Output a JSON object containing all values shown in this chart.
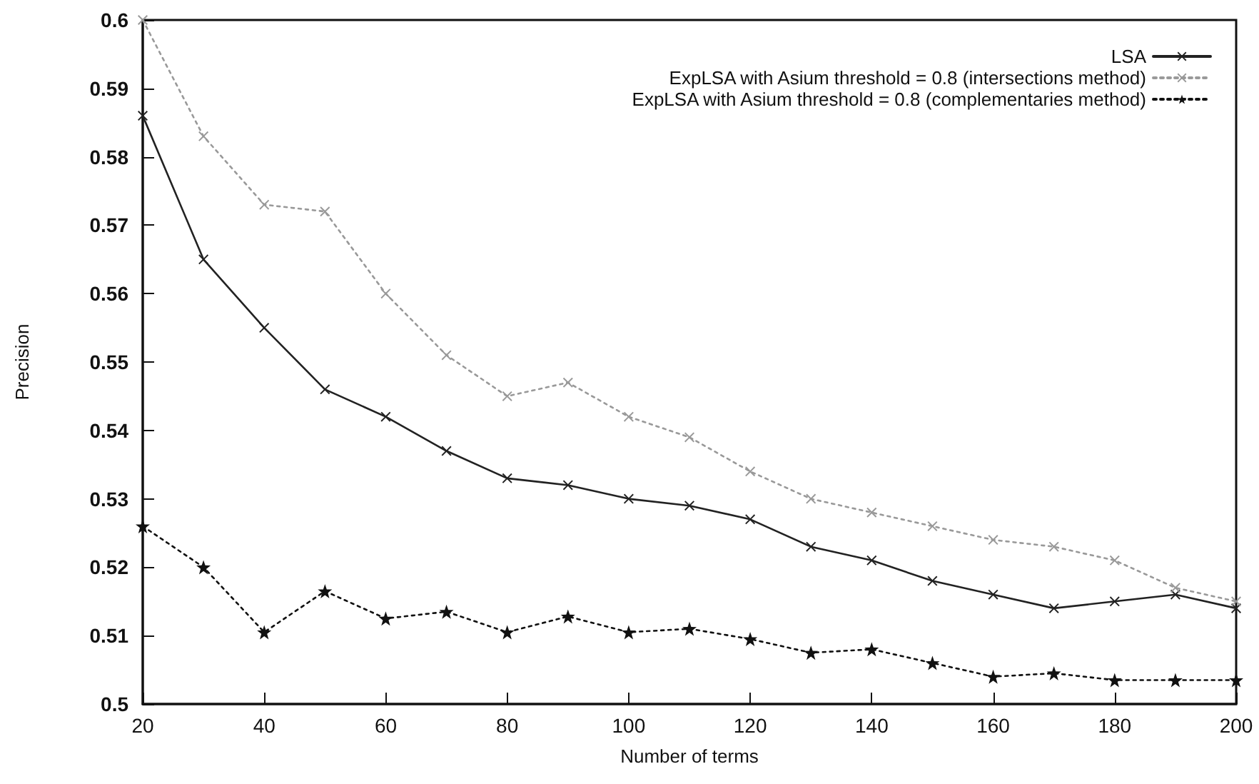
{
  "chart_data": {
    "type": "line",
    "xlabel": "Number of terms",
    "ylabel": "Precision",
    "x": [
      20,
      30,
      40,
      50,
      60,
      70,
      80,
      90,
      100,
      110,
      120,
      130,
      140,
      150,
      160,
      170,
      180,
      190,
      200
    ],
    "series": [
      {
        "name": "LSA",
        "color": "#222222",
        "line_style": "solid",
        "marker": "cross",
        "values": [
          0.586,
          0.565,
          0.555,
          0.546,
          0.542,
          0.537,
          0.533,
          0.532,
          0.53,
          0.529,
          0.527,
          0.523,
          0.521,
          0.518,
          0.516,
          0.514,
          0.515,
          0.516,
          0.514
        ]
      },
      {
        "name": "ExpLSA with Asium threshold = 0.8 (intersections method)",
        "color": "#999999",
        "line_style": "dotted",
        "marker": "cross",
        "values": [
          0.6,
          0.583,
          0.573,
          0.572,
          0.56,
          0.551,
          0.545,
          0.547,
          0.542,
          0.539,
          0.534,
          0.53,
          0.528,
          0.526,
          0.524,
          0.523,
          0.521,
          0.517,
          0.515
        ]
      },
      {
        "name": "ExpLSA with Asium threshold = 0.8 (complementaries method)",
        "color": "#111111",
        "line_style": "dotted",
        "marker": "star",
        "values": [
          0.526,
          0.52,
          0.5105,
          0.5165,
          0.5125,
          0.5135,
          0.5105,
          0.5128,
          0.5105,
          0.511,
          0.5095,
          0.5075,
          0.508,
          0.506,
          0.504,
          0.5045,
          0.5035,
          0.5035,
          0.5035
        ]
      }
    ],
    "xlim": [
      20,
      200
    ],
    "xticks": [
      20,
      40,
      60,
      80,
      100,
      120,
      140,
      160,
      180,
      200
    ],
    "ylim": [
      0.5,
      0.6
    ],
    "yticks": [
      0.5,
      0.51,
      0.52,
      0.53,
      0.54,
      0.55,
      0.56,
      0.57,
      0.58,
      0.59,
      0.6
    ],
    "grid": false,
    "legend": "top right"
  }
}
